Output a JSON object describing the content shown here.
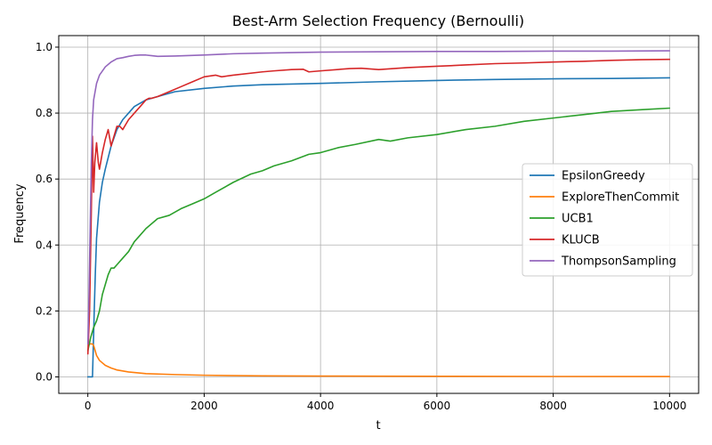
{
  "chart_data": {
    "type": "line",
    "title": "Best-Arm Selection Frequency (Bernoulli)",
    "xlabel": "t",
    "ylabel": "Frequency",
    "xlim": [
      -500,
      10500
    ],
    "ylim": [
      -0.05,
      1.035
    ],
    "xticks": [
      0,
      2000,
      4000,
      6000,
      8000,
      10000
    ],
    "yticks": [
      0.0,
      0.2,
      0.4,
      0.6,
      0.8,
      1.0
    ],
    "grid": true,
    "legend_position": "center-right",
    "series": [
      {
        "name": "EpsilonGreedy",
        "color": "#1f77b4",
        "x": [
          1,
          80,
          100,
          110,
          130,
          150,
          200,
          250,
          300,
          400,
          500,
          600,
          700,
          800,
          1000,
          1200,
          1500,
          2000,
          2500,
          3000,
          3500,
          4000,
          5000,
          6000,
          7000,
          8000,
          9000,
          10000
        ],
        "y": [
          0.0,
          0.0,
          0.13,
          0.2,
          0.32,
          0.42,
          0.53,
          0.59,
          0.63,
          0.7,
          0.75,
          0.78,
          0.8,
          0.82,
          0.84,
          0.85,
          0.865,
          0.875,
          0.882,
          0.886,
          0.888,
          0.89,
          0.895,
          0.899,
          0.902,
          0.904,
          0.905,
          0.907
        ]
      },
      {
        "name": "ExploreThenCommit",
        "color": "#ff7f0e",
        "x": [
          1,
          20,
          50,
          80,
          100,
          150,
          200,
          300,
          400,
          500,
          700,
          1000,
          1500,
          2000,
          3000,
          4000,
          5000,
          6000,
          8000,
          10000
        ],
        "y": [
          0.1,
          0.1,
          0.1,
          0.1,
          0.095,
          0.065,
          0.05,
          0.035,
          0.027,
          0.021,
          0.015,
          0.01,
          0.007,
          0.005,
          0.003,
          0.0025,
          0.002,
          0.0017,
          0.0013,
          0.001
        ]
      },
      {
        "name": "UCB1",
        "color": "#2ca02c",
        "x": [
          1,
          50,
          100,
          150,
          200,
          250,
          300,
          350,
          400,
          450,
          500,
          600,
          700,
          800,
          900,
          1000,
          1200,
          1400,
          1600,
          1800,
          2000,
          2200,
          2500,
          2800,
          3000,
          3200,
          3500,
          3800,
          4000,
          4300,
          4600,
          5000,
          5200,
          5500,
          6000,
          6500,
          7000,
          7500,
          8000,
          8500,
          9000,
          9500,
          10000
        ],
        "y": [
          0.08,
          0.12,
          0.15,
          0.17,
          0.2,
          0.25,
          0.28,
          0.31,
          0.33,
          0.33,
          0.34,
          0.36,
          0.38,
          0.41,
          0.43,
          0.45,
          0.48,
          0.49,
          0.51,
          0.525,
          0.54,
          0.56,
          0.59,
          0.615,
          0.625,
          0.64,
          0.655,
          0.675,
          0.68,
          0.695,
          0.705,
          0.72,
          0.715,
          0.725,
          0.735,
          0.75,
          0.76,
          0.775,
          0.785,
          0.795,
          0.805,
          0.81,
          0.815
        ]
      },
      {
        "name": "KLUCB",
        "color": "#d62728",
        "x": [
          1,
          30,
          60,
          80,
          100,
          120,
          150,
          180,
          200,
          250,
          300,
          350,
          400,
          450,
          500,
          550,
          600,
          700,
          800,
          900,
          1000,
          1050,
          1100,
          1200,
          1400,
          1600,
          1800,
          2000,
          2200,
          2300,
          2500,
          3000,
          3200,
          3500,
          3700,
          3800,
          4000,
          4500,
          4700,
          5000,
          5500,
          6000,
          6500,
          7000,
          7500,
          8000,
          8500,
          9000,
          9500,
          10000
        ],
        "y": [
          0.07,
          0.2,
          0.5,
          0.73,
          0.56,
          0.65,
          0.71,
          0.65,
          0.63,
          0.68,
          0.72,
          0.75,
          0.7,
          0.73,
          0.76,
          0.76,
          0.75,
          0.78,
          0.8,
          0.82,
          0.84,
          0.845,
          0.845,
          0.85,
          0.865,
          0.88,
          0.895,
          0.91,
          0.915,
          0.91,
          0.915,
          0.925,
          0.928,
          0.932,
          0.933,
          0.925,
          0.928,
          0.935,
          0.936,
          0.932,
          0.938,
          0.942,
          0.946,
          0.95,
          0.952,
          0.955,
          0.957,
          0.96,
          0.962,
          0.963
        ]
      },
      {
        "name": "ThompsonSampling",
        "color": "#9467bd",
        "x": [
          1,
          20,
          40,
          60,
          80,
          100,
          150,
          200,
          300,
          400,
          500,
          600,
          700,
          800,
          900,
          1000,
          1100,
          1200,
          1500,
          2000,
          2500,
          3000,
          4000,
          5000,
          6000,
          7000,
          8000,
          9000,
          10000
        ],
        "y": [
          0.1,
          0.25,
          0.45,
          0.65,
          0.78,
          0.84,
          0.89,
          0.915,
          0.94,
          0.955,
          0.965,
          0.968,
          0.972,
          0.975,
          0.976,
          0.976,
          0.974,
          0.972,
          0.973,
          0.976,
          0.98,
          0.982,
          0.985,
          0.986,
          0.987,
          0.987,
          0.988,
          0.988,
          0.989
        ]
      }
    ]
  }
}
